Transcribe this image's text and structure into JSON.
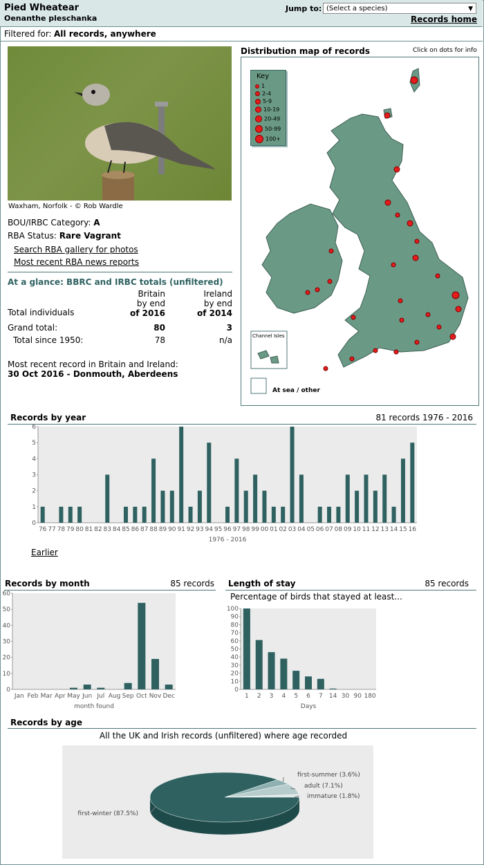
{
  "header": {
    "species_name": "Pied Wheatear",
    "latin_name": "Oenanthe pleschanka",
    "jump_label": "Jump to:",
    "jump_select_value": "(Select a species)",
    "records_home": "Records home"
  },
  "filter": {
    "label": "Filtered for:",
    "value": "All records, anywhere"
  },
  "photo": {
    "caption": "Waxham, Norfolk - © Rob Wardle"
  },
  "category": {
    "label": "BOU/IRBC Category:",
    "value": "A"
  },
  "status": {
    "label": "RBA Status:",
    "value": "Rare Vagrant"
  },
  "links": {
    "gallery": "Search RBA gallery for photos",
    "news": "Most recent RBA news reports"
  },
  "glance": {
    "title": "At a glance: BBRC and IRBC totals (unfiltered)",
    "britain_head": [
      "Britain",
      "by end",
      "of 2016"
    ],
    "ireland_head": [
      "Ireland",
      "by end",
      "of 2014"
    ],
    "total_individuals": "Total individuals",
    "grand_total_label": "Grand total:",
    "grand_total_britain": "80",
    "grand_total_ireland": "3",
    "since_label": "Total since 1950:",
    "since_britain": "78",
    "since_ireland": "n/a",
    "recent_label": "Most recent record in Britain and Ireland:",
    "recent_value": "30 Oct 2016  - Donmouth, Aberdeens"
  },
  "map": {
    "title": "Distribution map of records",
    "hint": "Click on dots for info",
    "key_title": "Key",
    "key_items": [
      "1",
      "2-4",
      "5-9",
      "10-19",
      "20-49",
      "50-99",
      "100+"
    ],
    "channel_isles": "Channel Isles",
    "at_sea": "At sea / other",
    "colors": {
      "land": "#6a9a86",
      "dot": "#e51c1c"
    }
  },
  "year_chart": {
    "title": "Records by year",
    "summary": "81 records 1976 - 2016",
    "xlabel": "1976 - 2016",
    "earlier_link": "Earlier"
  },
  "month_chart": {
    "title": "Records by month",
    "summary": "85 records",
    "xlabel": "month found"
  },
  "stay_chart": {
    "title": "Length of stay",
    "summary": "85 records",
    "subtitle": "Percentage of birds that stayed at least...",
    "xlabel": "Days"
  },
  "age_chart": {
    "title": "Records by age",
    "subtitle": "All the UK and Irish records (unfiltered) where age recorded"
  },
  "chart_data": [
    {
      "type": "bar",
      "title": "Records by year",
      "xlabel": "1976 - 2016",
      "ylim": [
        0,
        6
      ],
      "categories": [
        "76",
        "77",
        "78",
        "79",
        "80",
        "81",
        "82",
        "83",
        "84",
        "85",
        "86",
        "87",
        "88",
        "89",
        "90",
        "91",
        "92",
        "93",
        "94",
        "95",
        "96",
        "97",
        "98",
        "99",
        "00",
        "01",
        "02",
        "03",
        "04",
        "05",
        "06",
        "07",
        "08",
        "09",
        "10",
        "11",
        "12",
        "13",
        "14",
        "15",
        "16"
      ],
      "values": [
        1,
        0,
        1,
        1,
        1,
        0,
        0,
        3,
        0,
        1,
        1,
        1,
        4,
        2,
        2,
        6,
        1,
        2,
        5,
        0,
        1,
        4,
        2,
        3,
        2,
        1,
        1,
        6,
        3,
        0,
        1,
        1,
        1,
        3,
        2,
        3,
        2,
        3,
        1,
        4,
        5
      ]
    },
    {
      "type": "bar",
      "title": "Records by month",
      "xlabel": "month found",
      "ylim": [
        0,
        60
      ],
      "yticks": [
        0,
        10,
        20,
        30,
        40,
        50,
        60
      ],
      "categories": [
        "Jan",
        "Feb",
        "Mar",
        "Apr",
        "May",
        "Jun",
        "Jul",
        "Aug",
        "Sep",
        "Oct",
        "Nov",
        "Dec"
      ],
      "values": [
        0,
        0,
        0,
        0,
        1,
        3,
        1,
        0,
        4,
        54,
        19,
        3
      ]
    },
    {
      "type": "bar",
      "title": "Length of stay",
      "xlabel": "Days",
      "ylim": [
        0,
        100
      ],
      "yticks": [
        0,
        10,
        20,
        30,
        40,
        50,
        60,
        70,
        80,
        90,
        100
      ],
      "categories": [
        "1",
        "2",
        "3",
        "4",
        "5",
        "6",
        "7",
        "14",
        "30",
        "90",
        "180"
      ],
      "values": [
        100,
        61,
        46,
        38,
        23,
        16,
        13,
        1,
        0,
        0,
        0
      ]
    },
    {
      "type": "pie",
      "title": "Records by age",
      "labels": [
        "first-winter (87.5%)",
        "first-summer (3.6%)",
        "adult (7.1%)",
        "immature (1.8%)"
      ],
      "values": [
        87.5,
        3.6,
        7.1,
        1.8
      ],
      "colors": [
        "#2f6161",
        "#8fb0b0",
        "#b7cccc",
        "#dde6e6"
      ]
    }
  ]
}
